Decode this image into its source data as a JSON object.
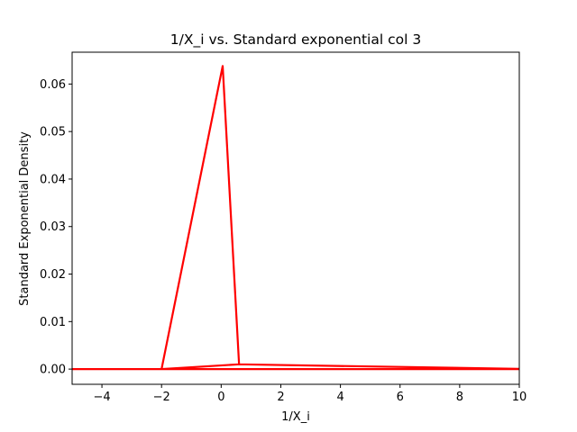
{
  "chart_data": {
    "type": "line",
    "title": "1/X_i vs. Standard exponential col 3",
    "xlabel": "1/X_i",
    "ylabel": "Standard Exponential Density",
    "xlim": [
      -5,
      10
    ],
    "ylim": [
      -0.0032,
      0.0667
    ],
    "x_ticks": [
      -4,
      -2,
      0,
      2,
      4,
      6,
      8,
      10
    ],
    "x_tick_labels": [
      "−4",
      "−2",
      "0",
      "2",
      "4",
      "6",
      "8",
      "10"
    ],
    "y_ticks": [
      0.0,
      0.01,
      0.02,
      0.03,
      0.04,
      0.05,
      0.06
    ],
    "y_tick_labels": [
      "0.00",
      "0.01",
      "0.02",
      "0.03",
      "0.04",
      "0.05",
      "0.06"
    ],
    "grid": false,
    "series": [
      {
        "color": "#ff0000",
        "points": [
          [
            -6,
            0.0
          ],
          [
            10.5,
            0.0
          ],
          [
            0.6,
            0.001
          ],
          [
            -2.0,
            0.0
          ],
          [
            0.05,
            0.0638
          ],
          [
            0.6,
            0.001
          ]
        ]
      }
    ]
  }
}
